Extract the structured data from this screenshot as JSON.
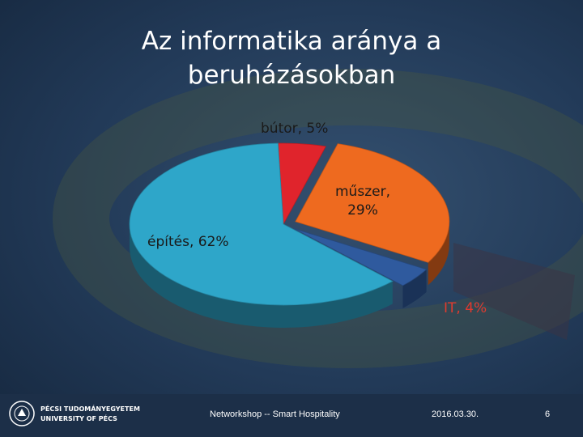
{
  "slide": {
    "title_line1": "Az informatika aránya a",
    "title_line2": "beruházásokban"
  },
  "chart_data": {
    "type": "pie",
    "title": "Az informatika aránya a beruházásokban",
    "slices": [
      {
        "label": "bútor",
        "value": 5,
        "color": "#e0242c",
        "display": "bútor, 5%",
        "exploded": false
      },
      {
        "label": "műszer",
        "value": 29,
        "color": "#ee6a1f",
        "display_line1": "műszer,",
        "display_line2": "29%",
        "exploded": true
      },
      {
        "label": "IT",
        "value": 4,
        "color": "#2f5a9e",
        "display": "IT, 4%",
        "exploded": true
      },
      {
        "label": "építés",
        "value": 62,
        "color": "#2ea6c9",
        "display": "építés, 62%",
        "exploded": false
      }
    ],
    "start_angle_deg": 268,
    "style": "3d",
    "legend": "none"
  },
  "footer": {
    "event": "Networkshop -- Smart Hospitality",
    "date": "2016.03.30.",
    "page": "6",
    "logo_line1": "PÉCSI TUDOMÁNYEGYETEM",
    "logo_line2": "UNIVERSITY OF PÉCS"
  }
}
